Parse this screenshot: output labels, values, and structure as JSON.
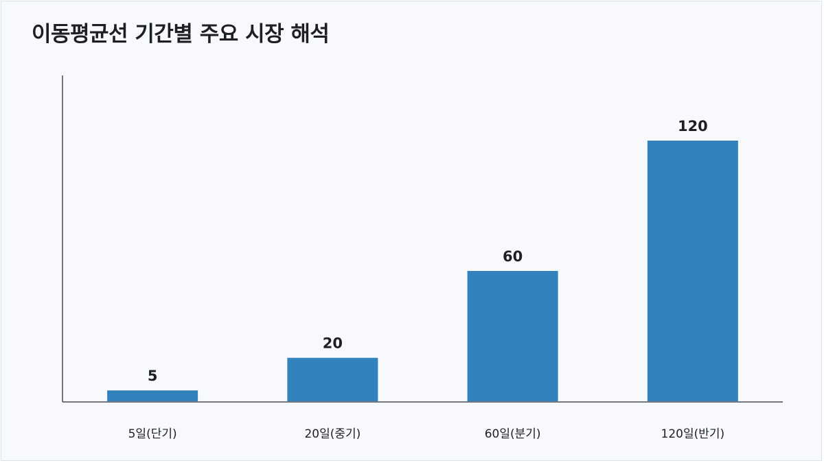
{
  "chart_data": {
    "type": "bar",
    "title": "이동평균선 기간별 주요 시장 해석",
    "categories": [
      "5일(단기)",
      "20일(중기)",
      "60일(분기)",
      "120일(반기)"
    ],
    "values": [
      5,
      20,
      60,
      120
    ],
    "value_labels": [
      "5",
      "20",
      "60",
      "120"
    ],
    "xlabel": "",
    "ylabel": "",
    "ylim": [
      0,
      150
    ],
    "grid": false,
    "bar_color": "#3182bd",
    "axis_color": "#4a4a55"
  }
}
